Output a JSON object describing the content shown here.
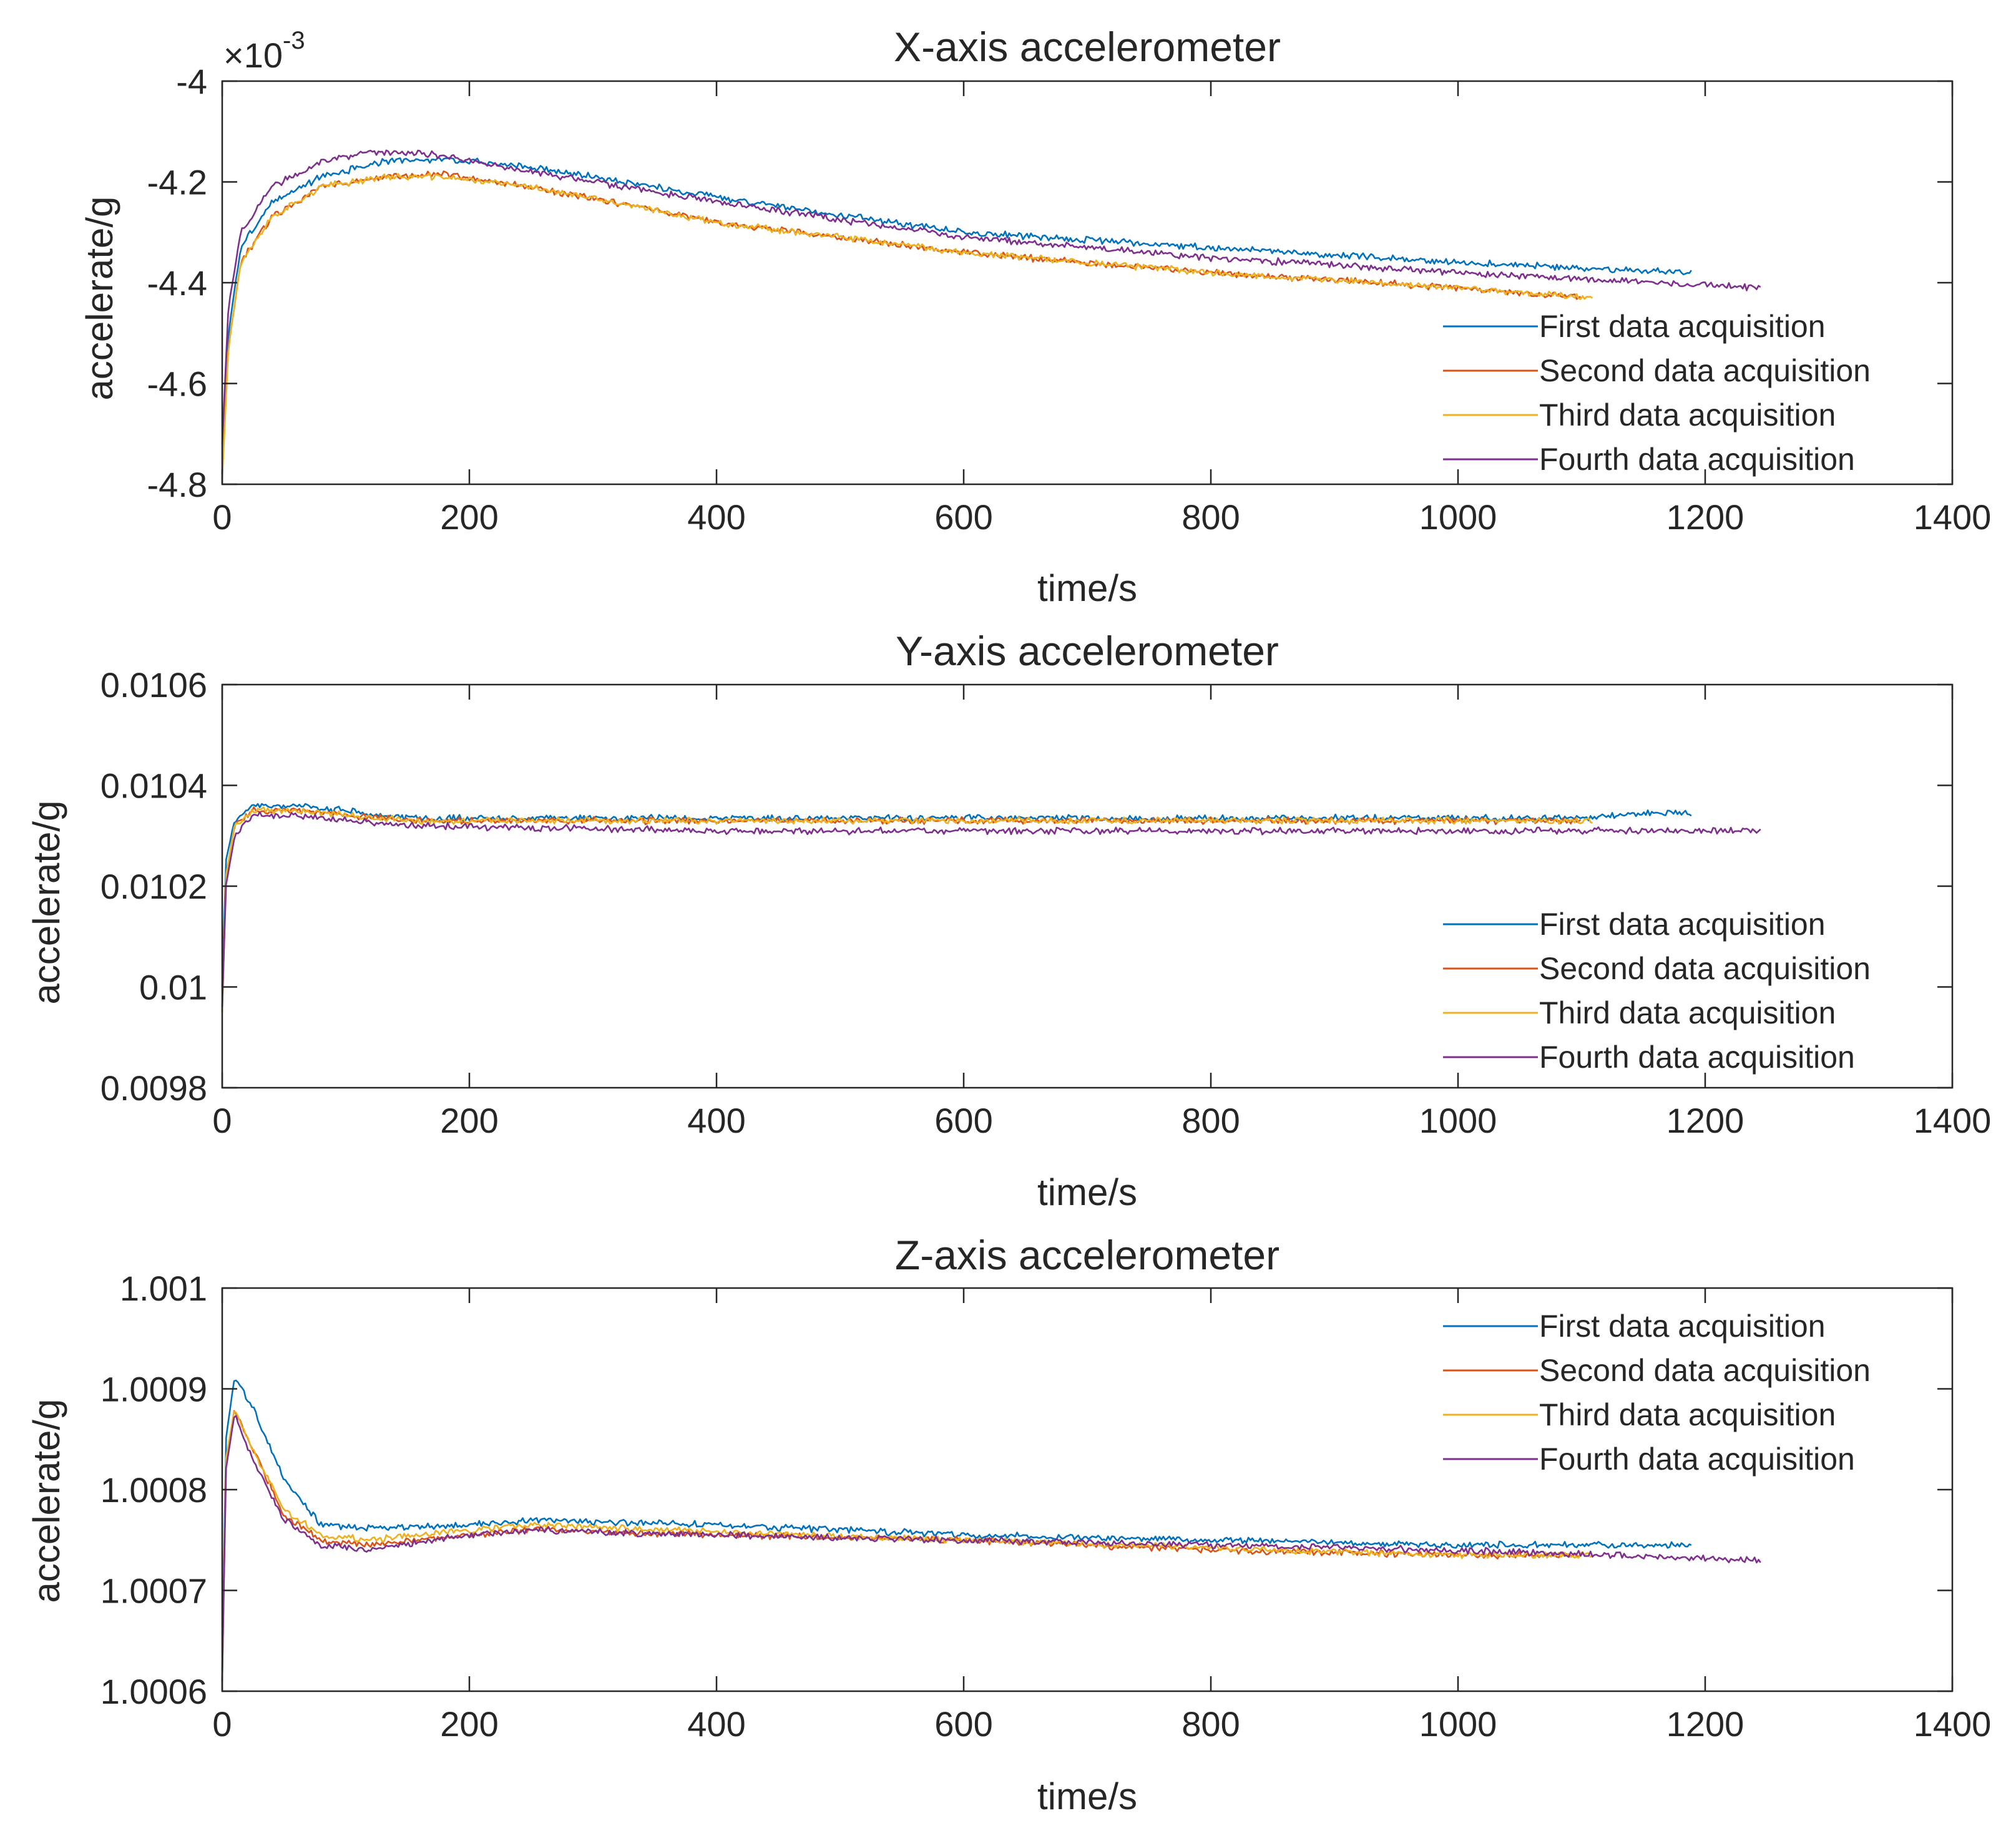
{
  "chart_data": [
    {
      "type": "line",
      "title": "X-axis accelerometer",
      "xlabel": "time/s",
      "ylabel": "accelerate/g",
      "xlim": [
        0,
        1400
      ],
      "ylim": [
        -4.8,
        -4.0
      ],
      "exponent_label": "×10",
      "exponent_power": "-3",
      "xticks": [
        "0",
        "200",
        "400",
        "600",
        "800",
        "1000",
        "1200",
        "1400"
      ],
      "yticks": [
        "-4",
        "-4.2",
        "-4.4",
        "-4.6",
        "-4.8"
      ],
      "legend_position": "bottom-right",
      "series": [
        {
          "name": "First data acquisition",
          "color": "#0072BD",
          "x": [
            0,
            5,
            15,
            40,
            80,
            130,
            180,
            250,
            400,
            600,
            800,
            1000,
            1190
          ],
          "y": [
            -4.78,
            -4.5,
            -4.33,
            -4.24,
            -4.19,
            -4.16,
            -4.155,
            -4.17,
            -4.23,
            -4.3,
            -4.33,
            -4.36,
            -4.38
          ]
        },
        {
          "name": "Second data acquisition",
          "color": "#D95319",
          "x": [
            0,
            5,
            15,
            40,
            80,
            130,
            180,
            250,
            400,
            600,
            800,
            1000,
            1100
          ],
          "y": [
            -4.78,
            -4.53,
            -4.36,
            -4.27,
            -4.21,
            -4.19,
            -4.185,
            -4.21,
            -4.28,
            -4.34,
            -4.38,
            -4.41,
            -4.43
          ]
        },
        {
          "name": "Third data acquisition",
          "color": "#EDB120",
          "x": [
            0,
            5,
            15,
            40,
            80,
            130,
            180,
            250,
            400,
            600,
            800,
            1000,
            1110
          ],
          "y": [
            -4.79,
            -4.53,
            -4.36,
            -4.27,
            -4.21,
            -4.19,
            -4.19,
            -4.21,
            -4.28,
            -4.34,
            -4.38,
            -4.41,
            -4.43
          ]
        },
        {
          "name": "Fourth data acquisition",
          "color": "#7E2F8E",
          "x": [
            0,
            5,
            15,
            40,
            80,
            120,
            170,
            250,
            400,
            600,
            800,
            1000,
            1245
          ],
          "y": [
            -4.72,
            -4.45,
            -4.3,
            -4.21,
            -4.16,
            -4.14,
            -4.145,
            -4.18,
            -4.24,
            -4.31,
            -4.35,
            -4.38,
            -4.41
          ]
        }
      ]
    },
    {
      "type": "line",
      "title": "Y-axis accelerometer",
      "xlabel": "time/s",
      "ylabel": "accelerate/g",
      "xlim": [
        0,
        1400
      ],
      "ylim": [
        0.0098,
        0.0106
      ],
      "xticks": [
        "0",
        "200",
        "400",
        "600",
        "800",
        "1000",
        "1200",
        "1400"
      ],
      "yticks": [
        "0.0106",
        "0.0104",
        "0.0102",
        "0.01",
        "0.0098"
      ],
      "legend_position": "bottom-right",
      "series": [
        {
          "name": "First data acquisition",
          "color": "#0072BD",
          "x": [
            0,
            3,
            10,
            25,
            60,
            150,
            400,
            800,
            1100,
            1150,
            1190
          ],
          "y": [
            0.01,
            0.01025,
            0.01033,
            0.01036,
            0.01036,
            0.010335,
            0.010335,
            0.010335,
            0.010335,
            0.010345,
            0.010345
          ]
        },
        {
          "name": "Second data acquisition",
          "color": "#D95319",
          "x": [
            0,
            3,
            10,
            25,
            60,
            150,
            400,
            800,
            1100
          ],
          "y": [
            0.00995,
            0.01022,
            0.01032,
            0.01035,
            0.01035,
            0.01033,
            0.01033,
            0.01033,
            0.01033
          ]
        },
        {
          "name": "Third data acquisition",
          "color": "#EDB120",
          "x": [
            0,
            3,
            10,
            25,
            60,
            150,
            400,
            800,
            1110
          ],
          "y": [
            0.00995,
            0.01022,
            0.01032,
            0.01035,
            0.01035,
            0.01033,
            0.01033,
            0.01033,
            0.01033
          ]
        },
        {
          "name": "Fourth data acquisition",
          "color": "#7E2F8E",
          "x": [
            0,
            3,
            10,
            25,
            60,
            150,
            400,
            800,
            1245
          ],
          "y": [
            0.00996,
            0.0102,
            0.0103,
            0.01034,
            0.01034,
            0.01032,
            0.01031,
            0.01031,
            0.01031
          ]
        }
      ]
    },
    {
      "type": "line",
      "title": "Z-axis accelerometer",
      "xlabel": "time/s",
      "ylabel": "accelerate/g",
      "xlim": [
        0,
        1400
      ],
      "ylim": [
        1.0006,
        1.001
      ],
      "xticks": [
        "0",
        "200",
        "400",
        "600",
        "800",
        "1000",
        "1200",
        "1400"
      ],
      "yticks": [
        "1.001",
        "1.0009",
        "1.0008",
        "1.0007",
        "1.0006"
      ],
      "legend_position": "top-right",
      "series": [
        {
          "name": "First data acquisition",
          "color": "#0072BD",
          "x": [
            0,
            3,
            10,
            25,
            50,
            80,
            120,
            200,
            250,
            400,
            600,
            800,
            1000,
            1190
          ],
          "y": [
            1.00062,
            1.00085,
            1.000912,
            1.00088,
            1.00081,
            1.000765,
            1.000762,
            1.000765,
            1.00077,
            1.000765,
            1.000755,
            1.00075,
            1.000745,
            1.000745
          ]
        },
        {
          "name": "Second data acquisition",
          "color": "#D95319",
          "x": [
            0,
            3,
            10,
            25,
            50,
            80,
            120,
            200,
            250,
            400,
            600,
            800,
            1000,
            1100
          ],
          "y": [
            1.00061,
            1.00083,
            1.00088,
            1.00084,
            1.000775,
            1.00075,
            1.000745,
            1.000755,
            1.00076,
            1.000755,
            1.00075,
            1.00074,
            1.000735,
            1.000735
          ]
        },
        {
          "name": "Third data acquisition",
          "color": "#EDB120",
          "x": [
            0,
            3,
            10,
            25,
            50,
            80,
            120,
            200,
            250,
            400,
            600,
            800,
            1000,
            1110
          ],
          "y": [
            1.00061,
            1.00083,
            1.00088,
            1.00084,
            1.00078,
            1.000755,
            1.00075,
            1.00076,
            1.000765,
            1.000758,
            1.00075,
            1.000742,
            1.000735,
            1.000735
          ]
        },
        {
          "name": "Fourth data acquisition",
          "color": "#7E2F8E",
          "x": [
            0,
            3,
            10,
            25,
            50,
            80,
            120,
            200,
            250,
            400,
            600,
            800,
            1000,
            1245
          ],
          "y": [
            1.00061,
            1.00082,
            1.000875,
            1.00083,
            1.00077,
            1.000745,
            1.00074,
            1.000755,
            1.00076,
            1.000755,
            1.00075,
            1.000745,
            1.00074,
            1.00073
          ]
        }
      ]
    }
  ]
}
